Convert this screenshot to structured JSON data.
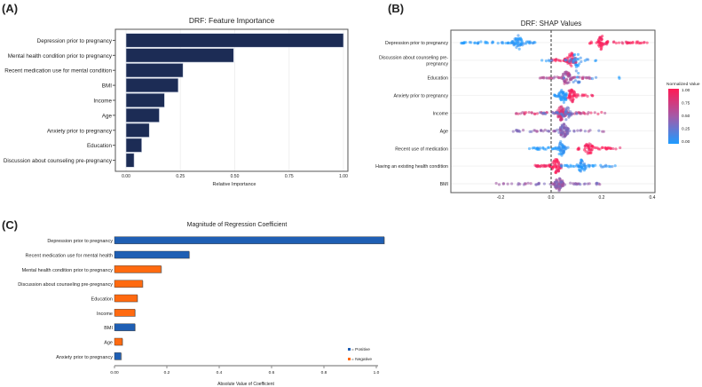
{
  "panels": {
    "a": "(A)",
    "b": "(B)",
    "c": "(C)"
  },
  "chart_data": [
    {
      "type": "bar",
      "orientation": "horizontal",
      "title": "DRF: Feature Importance",
      "xlabel": "Relative Importance",
      "xlim": [
        0,
        1
      ],
      "xticks": [
        "0.00",
        "0.25",
        "0.50",
        "0.75",
        "1.00"
      ],
      "xtick_values": [
        0,
        0.25,
        0.5,
        0.75,
        1
      ],
      "categories": [
        "Depression prior to pregnancy",
        "Mental health condition prior to pregnancy",
        "Recent medication use for mental condition",
        "BMI",
        "Income",
        "Age",
        "Anxiety prior to pregnancy",
        "Education",
        "Discussion about counseling pre-pregnancy"
      ],
      "values": [
        1.0,
        0.495,
        0.262,
        0.24,
        0.177,
        0.153,
        0.107,
        0.072,
        0.037
      ],
      "color": "#1c2c55"
    },
    {
      "type": "scatter",
      "subtype": "shap-beeswarm",
      "title": "DRF: SHAP Values",
      "xlim": [
        -0.39,
        0.41
      ],
      "xticks": [
        "-0.2",
        "0.0",
        "0.2",
        "0.4"
      ],
      "xtick_values": [
        -0.2,
        0,
        0.2,
        0.4
      ],
      "legend": {
        "title": "Normalized Value",
        "ticks": [
          "1.00",
          "0.75",
          "0.50",
          "0.25",
          "0.00"
        ],
        "low_color": "#1e9bff",
        "high_color": "#ff1a55",
        "placement": "right"
      },
      "features": [
        {
          "name": "Depression prior to pregnancy",
          "groups": [
            {
              "value": 0,
              "center": -0.13,
              "min": -0.36,
              "max": -0.06,
              "n": 90
            },
            {
              "value": 1,
              "center": 0.2,
              "min": 0.15,
              "max": 0.38,
              "n": 70
            }
          ]
        },
        {
          "name": "Discussion about counseling pre-pregnancy",
          "groups": [
            {
              "value": 1,
              "center": 0.08,
              "min": 0.0,
              "max": 0.1,
              "n": 60
            },
            {
              "value": 0,
              "center": 0.1,
              "min": -0.04,
              "max": 0.18,
              "n": 35
            }
          ]
        },
        {
          "name": "Education",
          "groups": [
            {
              "value": 0.6,
              "center": 0.06,
              "min": -0.07,
              "max": 0.16,
              "n": 80
            },
            {
              "value": 0.1,
              "center": 0.1,
              "min": 0.05,
              "max": 0.3,
              "n": 15
            }
          ]
        },
        {
          "name": "Anxiety prior to pregnancy",
          "groups": [
            {
              "value": 0,
              "center": 0.05,
              "min": 0.01,
              "max": 0.06,
              "n": 55
            },
            {
              "value": 1,
              "center": 0.08,
              "min": 0.06,
              "max": 0.17,
              "n": 50
            }
          ]
        },
        {
          "name": "Income",
          "groups": [
            {
              "value": 0.8,
              "center": 0.04,
              "min": -0.14,
              "max": 0.23,
              "n": 110
            },
            {
              "value": 0.3,
              "center": 0.06,
              "min": -0.05,
              "max": 0.15,
              "n": 40
            }
          ]
        },
        {
          "name": "Age",
          "groups": [
            {
              "value": 0.45,
              "center": 0.05,
              "min": -0.15,
              "max": 0.21,
              "n": 110
            }
          ]
        },
        {
          "name": "Recent use of medication",
          "groups": [
            {
              "value": 0,
              "center": 0.04,
              "min": -0.09,
              "max": 0.07,
              "n": 70
            },
            {
              "value": 1,
              "center": 0.15,
              "min": 0.1,
              "max": 0.3,
              "n": 60
            }
          ]
        },
        {
          "name": "Having an existing health condition",
          "groups": [
            {
              "value": 1,
              "center": 0.02,
              "min": -0.07,
              "max": 0.04,
              "n": 70
            },
            {
              "value": 0,
              "center": 0.12,
              "min": 0.04,
              "max": 0.27,
              "n": 70
            }
          ]
        },
        {
          "name": "BMI",
          "groups": [
            {
              "value": 0.5,
              "center": 0.03,
              "min": -0.22,
              "max": 0.2,
              "n": 110
            }
          ]
        }
      ]
    },
    {
      "type": "bar",
      "orientation": "horizontal",
      "title": "Magnitude of Regression Coefficient",
      "xlabel": "Absolute Value of Coefficient",
      "xlim": [
        0,
        1.0
      ],
      "xticks": [
        "0.00",
        "0.2",
        "0.4",
        "0.6",
        "0.8",
        "1.0"
      ],
      "xtick_values": [
        0,
        0.2,
        0.4,
        0.6,
        0.8,
        1.0
      ],
      "categories": [
        "Depression prior to pregnancy",
        "Recent medication use for mental health",
        "Mental health condition prior to pregnancy",
        "Discussion about counseling pre-pregnancy",
        "Education",
        "Income",
        "BMI",
        "Age",
        "Anxiety prior to pregnancy"
      ],
      "values": [
        1.03,
        0.285,
        0.178,
        0.107,
        0.087,
        0.078,
        0.078,
        0.03,
        0.025
      ],
      "signs": [
        "Positive",
        "Positive",
        "Negative",
        "Negative",
        "Negative",
        "Negative",
        "Positive",
        "Negative",
        "Positive"
      ],
      "legend": [
        {
          "label": "= Positive",
          "color": "#1f5fb4"
        },
        {
          "label": "= Negative",
          "color": "#ff6a10"
        }
      ],
      "legend_placement": "bottom-right"
    }
  ]
}
